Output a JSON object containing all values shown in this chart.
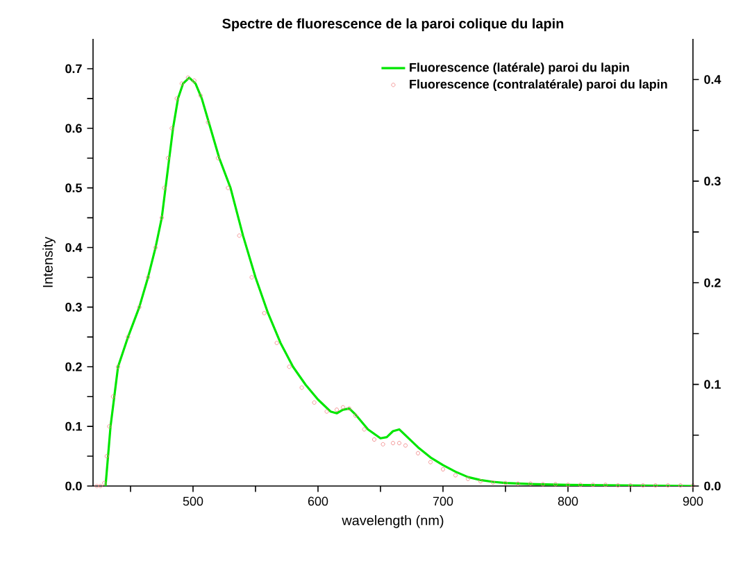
{
  "chart_data": {
    "type": "line",
    "title": "Spectre de fluorescence de la paroi colique du lapin",
    "xlabel": "wavelength (nm)",
    "ylabel": "Intensity",
    "xlim": [
      420,
      900
    ],
    "ylim": [
      0,
      0.75
    ],
    "y2lim": [
      0,
      0.44
    ],
    "xticks": [
      {
        "value": 450,
        "label": null
      },
      500,
      {
        "value": 550,
        "label": null
      },
      600,
      {
        "value": 650,
        "label": null
      },
      700,
      {
        "value": 750,
        "label": null
      },
      800,
      {
        "value": 850,
        "label": null
      },
      900
    ],
    "yticks": [
      {
        "value": 0,
        "label": "0.0"
      },
      {
        "value": 0.05,
        "label": null
      },
      0.1,
      {
        "value": 0.15,
        "label": null
      },
      0.2,
      {
        "value": 0.25,
        "label": null
      },
      0.3,
      {
        "value": 0.35,
        "label": null
      },
      0.4,
      {
        "value": 0.45,
        "label": null
      },
      0.5,
      {
        "value": 0.55,
        "label": null
      },
      0.6,
      {
        "value": 0.65,
        "label": null
      },
      0.7
    ],
    "y2ticks": [
      {
        "value": 0,
        "label": "0.0"
      },
      {
        "value": 0.05,
        "label": null
      },
      0.1,
      {
        "value": 0.15,
        "label": null
      },
      0.2,
      {
        "value": 0.25,
        "label": null
      },
      0.3,
      {
        "value": 0.35,
        "label": null
      },
      0.4
    ],
    "legend": "top right",
    "series": [
      {
        "name": "Fluorescence (latérale) paroi du lapin",
        "marker": "none",
        "color": "#00e600",
        "x": [
          430,
          432,
          434,
          437,
          440,
          448,
          457,
          464,
          470,
          475,
          478,
          481,
          484,
          488,
          492,
          497,
          502,
          507,
          514,
          521,
          530,
          540,
          550,
          560,
          570,
          580,
          590,
          600,
          610,
          615,
          620,
          625,
          630,
          640,
          650,
          655,
          660,
          665,
          670,
          680,
          690,
          700,
          710,
          720,
          730,
          740,
          750,
          775,
          800,
          850,
          900
        ],
        "values": [
          0,
          0.05,
          0.1,
          0.15,
          0.2,
          0.25,
          0.3,
          0.35,
          0.4,
          0.45,
          0.5,
          0.55,
          0.6,
          0.65,
          0.675,
          0.685,
          0.675,
          0.65,
          0.6,
          0.55,
          0.5,
          0.42,
          0.35,
          0.29,
          0.24,
          0.2,
          0.17,
          0.145,
          0.125,
          0.122,
          0.128,
          0.13,
          0.12,
          0.095,
          0.08,
          0.082,
          0.092,
          0.095,
          0.085,
          0.065,
          0.048,
          0.035,
          0.024,
          0.015,
          0.01,
          0.007,
          0.005,
          0.003,
          0.002,
          0.001,
          0
        ]
      },
      {
        "name": "Fluorescence (contralatérale) paroi du lapin",
        "type": "scatter",
        "marker": "circle",
        "color": "#f08080",
        "x": [
          423,
          426,
          429,
          431,
          433,
          436,
          440,
          448,
          457,
          464,
          470,
          475,
          477,
          480,
          483,
          487,
          491,
          496,
          501,
          506,
          512,
          520,
          528,
          537,
          547,
          557,
          567,
          577,
          587,
          597,
          607,
          615,
          620,
          625,
          630,
          637,
          645,
          652,
          660,
          665,
          670,
          680,
          690,
          700,
          710,
          720,
          730,
          740,
          750,
          760,
          770,
          780,
          790,
          800,
          810,
          820,
          830,
          840,
          850,
          860,
          870,
          880,
          890,
          900
        ],
        "values": [
          0,
          0,
          0.005,
          0.05,
          0.1,
          0.15,
          0.2,
          0.25,
          0.3,
          0.35,
          0.4,
          0.45,
          0.5,
          0.55,
          0.6,
          0.65,
          0.675,
          0.685,
          0.68,
          0.655,
          0.61,
          0.55,
          0.5,
          0.42,
          0.35,
          0.29,
          0.24,
          0.2,
          0.165,
          0.14,
          0.125,
          0.128,
          0.132,
          0.13,
          0.118,
          0.095,
          0.078,
          0.07,
          0.072,
          0.072,
          0.068,
          0.055,
          0.04,
          0.028,
          0.018,
          0.012,
          0.008,
          0.006,
          0.005,
          0.004,
          0.004,
          0.003,
          0.003,
          0.002,
          0.002,
          0.002,
          0.002,
          0.001,
          0.001,
          0.001,
          0.001,
          0.001,
          0.001,
          0.001
        ]
      }
    ]
  }
}
